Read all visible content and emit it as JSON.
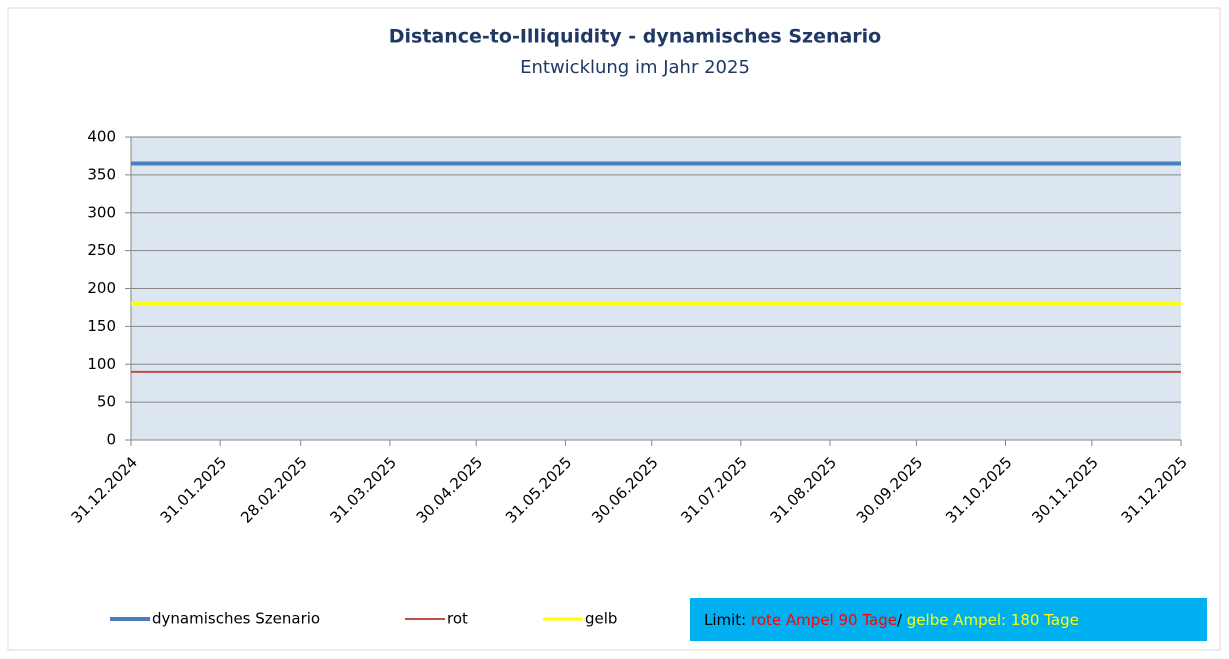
{
  "chart_data": {
    "type": "line",
    "title": "Distance-to-Illiquidity - dynamisches Szenario",
    "subtitle": "Entwicklung im Jahr 2025",
    "categories": [
      "31.12.2024",
      "31.01.2025",
      "28.02.2025",
      "31.03.2025",
      "30.04.2025",
      "31.05.2025",
      "30.06.2025",
      "31.07.2025",
      "31.08.2025",
      "30.09.2025",
      "31.10.2025",
      "30.11.2025",
      "31.12.2025"
    ],
    "series": [
      {
        "name": "dynamisches Szenario",
        "color": "#4a7ebb",
        "width": 4,
        "values": [
          365,
          365,
          365,
          365,
          365,
          365,
          365,
          365,
          365,
          365,
          365,
          365,
          365
        ]
      },
      {
        "name": "rot",
        "color": "#be4b48",
        "width": 2,
        "values": [
          90,
          90,
          90,
          90,
          90,
          90,
          90,
          90,
          90,
          90,
          90,
          90,
          90
        ]
      },
      {
        "name": "gelb",
        "color": "#ffff00",
        "width": 3,
        "values": [
          180,
          180,
          180,
          180,
          180,
          180,
          180,
          180,
          180,
          180,
          180,
          180,
          180
        ]
      }
    ],
    "ylim": [
      0,
      400
    ],
    "yticks": [
      0,
      50,
      100,
      150,
      200,
      250,
      300,
      350,
      400
    ],
    "grid": true,
    "annotation": [
      {
        "text": "Limit: ",
        "color": "#000000"
      },
      {
        "text": "rote Ampel 90 Tage",
        "color": "#ff0000"
      },
      {
        "text": "/ ",
        "color": "#000000"
      },
      {
        "text": "gelbe Ampel: 180 Tage",
        "color": "#ffff00"
      }
    ]
  }
}
